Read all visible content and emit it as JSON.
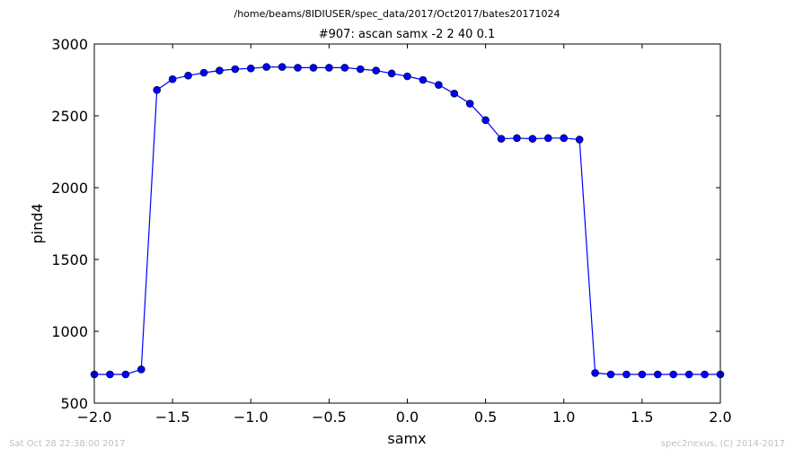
{
  "figure": {
    "suptitle": "/home/beams/8IDIUSER/spec_data/2017/Oct2017/bates20171024",
    "footer_left": "Sat Oct 28 22:38:00 2017",
    "footer_right": "spec2nexus, (C) 2014-2017"
  },
  "chart_data": {
    "type": "line",
    "title": "#907: ascan  samx -2 2  40 0.1",
    "xlabel": "samx",
    "ylabel": "pind4",
    "xlim": [
      -2.0,
      2.0
    ],
    "ylim": [
      500,
      3000
    ],
    "xticks": [
      "−2.0",
      "−1.5",
      "−1.0",
      "−0.5",
      "0.0",
      "0.5",
      "1.0",
      "1.5",
      "2.0"
    ],
    "yticks": [
      "500",
      "1000",
      "1500",
      "2000",
      "2500",
      "3000"
    ],
    "grid": false,
    "line_color": "#0000ff",
    "marker": "circle",
    "series": [
      {
        "x": [
          -2.0,
          -1.9,
          -1.8,
          -1.7,
          -1.6,
          -1.5,
          -1.4,
          -1.3,
          -1.2,
          -1.1,
          -1.0,
          -0.9,
          -0.8,
          -0.7,
          -0.6,
          -0.5,
          -0.4,
          -0.3,
          -0.2,
          -0.1,
          0.0,
          0.1,
          0.2,
          0.3,
          0.4,
          0.5,
          0.6,
          0.7,
          0.8,
          0.9,
          1.0,
          1.1,
          1.2,
          1.3,
          1.4,
          1.5,
          1.6,
          1.7,
          1.8,
          1.9,
          2.0
        ],
        "y": [
          700,
          700,
          700,
          735,
          2680,
          2755,
          2780,
          2800,
          2815,
          2825,
          2830,
          2840,
          2840,
          2835,
          2835,
          2835,
          2835,
          2825,
          2815,
          2795,
          2775,
          2750,
          2715,
          2655,
          2585,
          2470,
          2340,
          2345,
          2340,
          2345,
          2345,
          2335,
          710,
          700,
          700,
          700,
          700,
          700,
          700,
          700,
          700
        ]
      }
    ]
  }
}
